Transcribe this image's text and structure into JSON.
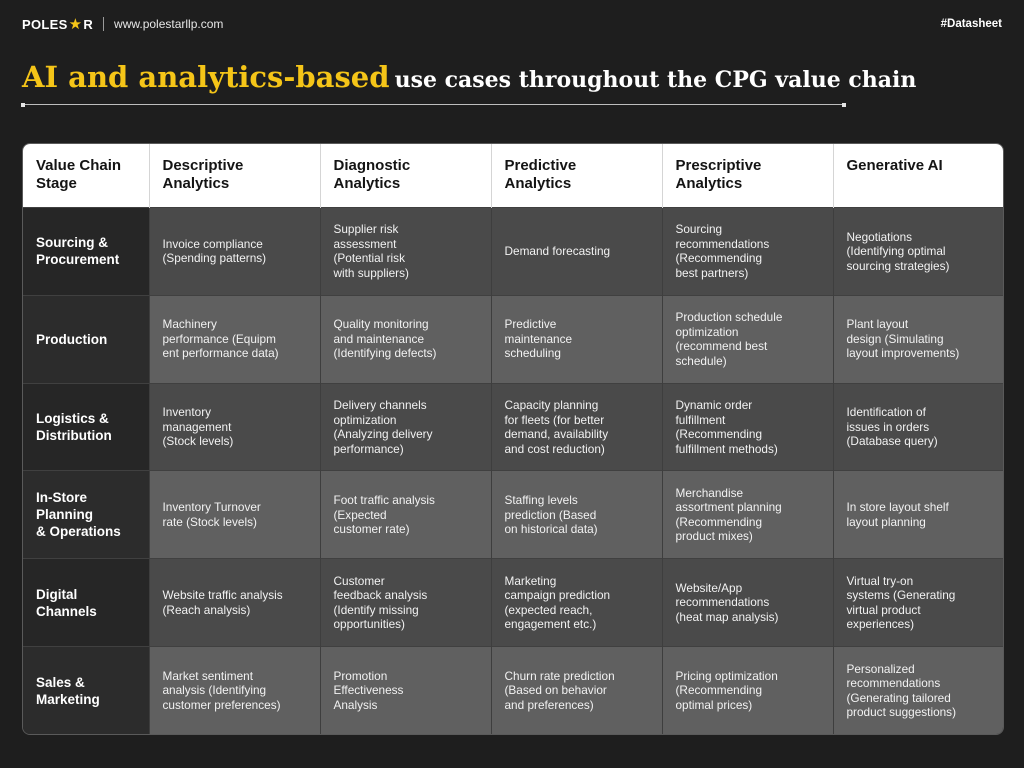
{
  "header": {
    "logo_left": "POLES",
    "logo_right": "R",
    "logo_star": "★",
    "website": "www.polestarllp.com",
    "tag": "#Datasheet"
  },
  "title": {
    "highlight": "AI and analytics-based",
    "rest": "use cases throughout the CPG value chain"
  },
  "table": {
    "headers": [
      "Value Chain\nStage",
      "Descriptive\nAnalytics",
      "Diagnostic\nAnalytics",
      "Predictive\nAnalytics",
      "Prescriptive\nAnalytics",
      "Generative AI"
    ],
    "rows": [
      {
        "stage": "Sourcing &\nProcurement",
        "cells": [
          "Invoice compliance\n(Spending patterns)",
          "Supplier risk\nassessment\n(Potential risk\nwith suppliers)",
          "Demand forecasting",
          "Sourcing\nrecommendations\n(Recommending\nbest partners)",
          "Negotiations\n(Identifying optimal\nsourcing strategies)"
        ]
      },
      {
        "stage": "Production",
        "cells": [
          "Machinery\nperformance (Equipm\nent performance data)",
          "Quality monitoring\nand maintenance\n(Identifying defects)",
          "Predictive\nmaintenance\nscheduling",
          "Production schedule\noptimization\n(recommend best\nschedule)",
          "Plant layout\ndesign (Simulating\nlayout improvements)"
        ]
      },
      {
        "stage": "Logistics &\nDistribution",
        "cells": [
          "Inventory\nmanagement\n(Stock levels)",
          "Delivery channels\noptimization\n(Analyzing delivery\nperformance)",
          "Capacity planning\nfor fleets (for better\ndemand, availability\nand cost reduction)",
          "Dynamic order\nfulfillment\n(Recommending\nfulfillment methods)",
          "Identification of\nissues in orders\n(Database query)"
        ]
      },
      {
        "stage": "In-Store\nPlanning\n& Operations",
        "cells": [
          "Inventory Turnover\nrate (Stock levels)",
          "Foot traffic analysis\n(Expected\ncustomer rate)",
          "Staffing levels\nprediction (Based\non historical data)",
          "Merchandise\nassortment planning\n(Recommending\nproduct mixes)",
          "In store layout shelf\nlayout planning"
        ]
      },
      {
        "stage": "Digital\nChannels",
        "cells": [
          "Website traffic analysis\n(Reach analysis)",
          "Customer\nfeedback analysis\n(Identify missing\nopportunities)",
          "Marketing\ncampaign prediction\n(expected reach,\nengagement etc.)",
          "Website/App\nrecommendations\n(heat map analysis)",
          "Virtual try-on\nsystems (Generating\nvirtual product\nexperiences)"
        ]
      },
      {
        "stage": "Sales &\nMarketing",
        "cells": [
          "Market sentiment\nanalysis (Identifying\ncustomer preferences)",
          "Promotion\nEffectiveness\nAnalysis",
          "Churn rate prediction\n(Based on behavior\nand preferences)",
          "Pricing optimization\n(Recommending\noptimal prices)",
          "Personalized\nrecommendations\n(Generating tailored\nproduct suggestions)"
        ]
      }
    ]
  }
}
